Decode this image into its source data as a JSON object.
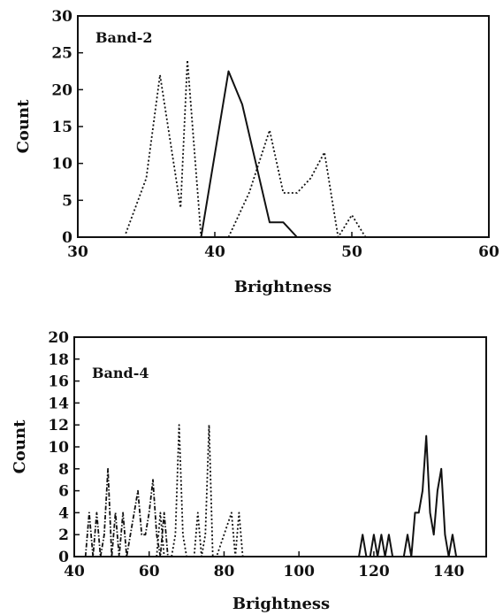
{
  "chart_data": [
    {
      "type": "line",
      "annotation": "Band-2",
      "xlabel": "Brightness",
      "ylabel": "Count",
      "xlim": [
        30,
        60
      ],
      "ylim": [
        0,
        30
      ],
      "xticks": [
        "30",
        "40",
        "50",
        "60"
      ],
      "yticks": [
        "0",
        "5",
        "10",
        "15",
        "20",
        "25",
        "30"
      ],
      "series": [
        {
          "style": "dotted",
          "points": [
            [
              33.5,
              0.5
            ],
            [
              35,
              8
            ],
            [
              36,
              22
            ],
            [
              37,
              10
            ],
            [
              37.5,
              4
            ],
            [
              38,
              24
            ],
            [
              39,
              0
            ]
          ]
        },
        {
          "style": "solid",
          "points": [
            [
              39,
              0
            ],
            [
              41,
              22.5
            ],
            [
              42,
              18
            ],
            [
              43,
              10
            ],
            [
              44,
              2
            ],
            [
              45,
              2
            ],
            [
              46,
              0
            ]
          ]
        },
        {
          "style": "dotted",
          "points": [
            [
              41,
              0
            ],
            [
              42.5,
              6
            ],
            [
              44,
              14.5
            ],
            [
              45,
              6
            ],
            [
              46,
              6
            ],
            [
              47,
              8
            ],
            [
              48,
              11.5
            ],
            [
              49,
              0
            ],
            [
              50,
              3
            ],
            [
              51,
              0
            ]
          ]
        }
      ]
    },
    {
      "type": "line",
      "annotation": "Band-4",
      "xlabel": "Brightness",
      "ylabel": "Count",
      "xlim": [
        40,
        150
      ],
      "ylim": [
        0,
        20
      ],
      "xticks": [
        "40",
        "60",
        "80",
        "100",
        "120",
        "140"
      ],
      "yticks": [
        "0",
        "2",
        "4",
        "6",
        "8",
        "10",
        "12",
        "14",
        "16",
        "18",
        "20"
      ],
      "series": [
        {
          "style": "dash-dot",
          "points": [
            [
              43,
              0
            ],
            [
              44,
              4
            ],
            [
              45,
              0
            ],
            [
              46,
              4
            ],
            [
              47,
              0
            ],
            [
              48,
              2
            ],
            [
              49,
              8
            ],
            [
              50,
              0
            ],
            [
              51,
              4
            ],
            [
              52,
              0
            ],
            [
              53,
              4
            ],
            [
              54,
              0
            ],
            [
              55,
              2
            ],
            [
              56,
              4
            ],
            [
              57,
              6
            ],
            [
              58,
              2
            ],
            [
              59,
              2
            ],
            [
              60,
              4
            ],
            [
              61,
              7
            ],
            [
              62,
              2
            ],
            [
              63,
              0
            ],
            [
              64,
              4
            ],
            [
              65,
              0
            ]
          ]
        },
        {
          "style": "dotted",
          "points": [
            [
              62,
              0
            ],
            [
              63,
              4
            ],
            [
              64,
              0
            ],
            [
              66,
              0
            ],
            [
              67,
              2
            ],
            [
              68,
              12
            ],
            [
              69,
              2
            ],
            [
              70,
              0
            ],
            [
              72,
              0
            ],
            [
              73,
              4
            ],
            [
              74,
              0
            ],
            [
              75,
              2
            ],
            [
              76,
              12
            ],
            [
              77,
              0
            ],
            [
              78,
              0
            ],
            [
              82,
              4
            ],
            [
              83,
              0
            ],
            [
              84,
              4
            ],
            [
              85,
              0
            ]
          ]
        },
        {
          "style": "solid",
          "points": [
            [
              116,
              0
            ],
            [
              117,
              2
            ],
            [
              118,
              0
            ],
            [
              119,
              0
            ],
            [
              120,
              2
            ],
            [
              121,
              0
            ],
            [
              122,
              2
            ],
            [
              123,
              0
            ],
            [
              124,
              2
            ],
            [
              125,
              0
            ],
            [
              128,
              0
            ],
            [
              129,
              2
            ],
            [
              130,
              0
            ],
            [
              131,
              4
            ],
            [
              132,
              4
            ],
            [
              133,
              6
            ],
            [
              134,
              11
            ],
            [
              135,
              4
            ],
            [
              136,
              2
            ],
            [
              137,
              6
            ],
            [
              138,
              8
            ],
            [
              139,
              2
            ],
            [
              140,
              0
            ],
            [
              141,
              2
            ],
            [
              142,
              0
            ]
          ]
        }
      ]
    }
  ]
}
